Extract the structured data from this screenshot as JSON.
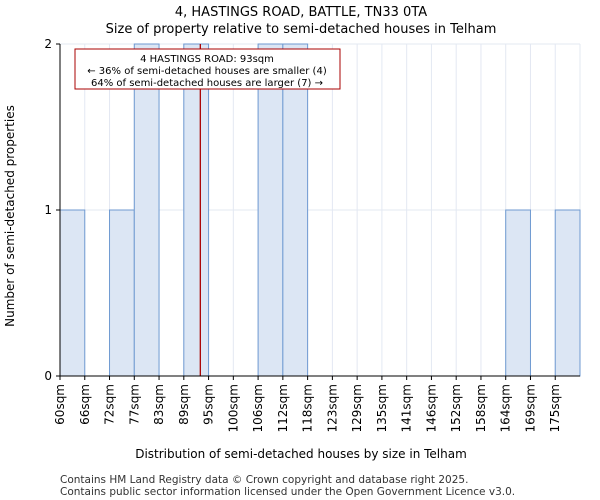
{
  "chart_data": {
    "type": "bar",
    "title": "4, HASTINGS ROAD, BATTLE, TN33 0TA",
    "subtitle": "Size of property relative to semi-detached houses in Telham",
    "xlabel": "Distribution of semi-detached houses by size in Telham",
    "ylabel": "Number of semi-detached properties",
    "categories": [
      "60sqm",
      "66sqm",
      "72sqm",
      "77sqm",
      "83sqm",
      "89sqm",
      "95sqm",
      "100sqm",
      "106sqm",
      "112sqm",
      "118sqm",
      "123sqm",
      "129sqm",
      "135sqm",
      "141sqm",
      "146sqm",
      "152sqm",
      "158sqm",
      "164sqm",
      "169sqm",
      "175sqm"
    ],
    "values": [
      1,
      0,
      1,
      2,
      0,
      2,
      0,
      0,
      2,
      2,
      0,
      0,
      0,
      0,
      0,
      0,
      0,
      0,
      1,
      0,
      1
    ],
    "ylim": [
      0,
      2
    ],
    "yticks": [
      0,
      1,
      2
    ],
    "grid": true,
    "property_marker": {
      "value_sqm": 93,
      "color": "#aa0000"
    },
    "annotation": {
      "line1": "4 HASTINGS ROAD: 93sqm",
      "line2": "← 36% of semi-detached houses are smaller (4)",
      "line3": "64% of semi-detached houses are larger (7) →"
    },
    "colors": {
      "bar_fill": "#dce6f4",
      "bar_stroke": "#6f9ad1",
      "grid": "#e3e8f2",
      "marker": "#aa0000"
    }
  },
  "footer": {
    "line1": "Contains HM Land Registry data © Crown copyright and database right 2025.",
    "line2": "Contains public sector information licensed under the Open Government Licence v3.0."
  }
}
